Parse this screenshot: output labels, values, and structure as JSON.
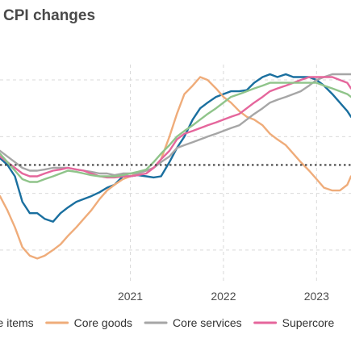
{
  "chart_data": {
    "type": "line",
    "title": "CPI changes",
    "xlabel": "",
    "ylabel": "",
    "x_ticks": [
      {
        "label": "2021",
        "x": 2021.0
      },
      {
        "label": "2022",
        "x": 2022.0
      },
      {
        "label": "2023",
        "x": 2023.0
      }
    ],
    "xlim": [
      2019.6,
      2023.37
    ],
    "ylim": [
      -1.6,
      2.2
    ],
    "gridlines_y": [
      -1.0,
      0.0,
      1.0,
      2.0
    ],
    "reference_line": 0.5,
    "grid": true,
    "legend_position": "bottom",
    "series": [
      {
        "name": "Core items",
        "color": "#1a6f9f",
        "x": [
          2019.6,
          2019.68,
          2019.76,
          2019.84,
          2019.92,
          2020.0,
          2020.08,
          2020.17,
          2020.25,
          2020.33,
          2020.42,
          2020.5,
          2020.58,
          2020.67,
          2020.75,
          2020.83,
          2020.92,
          2021.0,
          2021.08,
          2021.17,
          2021.25,
          2021.33,
          2021.42,
          2021.5,
          2021.58,
          2021.67,
          2021.75,
          2021.83,
          2021.92,
          2022.0,
          2022.08,
          2022.17,
          2022.25,
          2022.33,
          2022.42,
          2022.5,
          2022.58,
          2022.67,
          2022.75,
          2022.83,
          2022.92,
          2023.0,
          2023.08,
          2023.17,
          2023.25,
          2023.33,
          2023.37
        ],
        "y": [
          0.62,
          0.5,
          0.3,
          -0.15,
          -0.35,
          -0.35,
          -0.45,
          -0.5,
          -0.35,
          -0.25,
          -0.15,
          -0.1,
          -0.05,
          0.02,
          0.1,
          0.15,
          0.3,
          0.3,
          0.32,
          0.3,
          0.28,
          0.3,
          0.55,
          0.8,
          1.0,
          1.3,
          1.5,
          1.6,
          1.7,
          1.75,
          1.8,
          1.8,
          1.82,
          1.95,
          2.05,
          2.1,
          2.05,
          2.1,
          2.05,
          2.05,
          2.05,
          2.0,
          1.9,
          1.75,
          1.6,
          1.45,
          1.35
        ]
      },
      {
        "name": "Core goods",
        "color": "#efac7a",
        "x": [
          2019.6,
          2019.68,
          2019.76,
          2019.84,
          2019.92,
          2020.0,
          2020.08,
          2020.17,
          2020.25,
          2020.33,
          2020.42,
          2020.5,
          2020.58,
          2020.67,
          2020.75,
          2020.83,
          2020.92,
          2021.0,
          2021.08,
          2021.17,
          2021.25,
          2021.33,
          2021.42,
          2021.5,
          2021.58,
          2021.67,
          2021.75,
          2021.83,
          2021.92,
          2022.0,
          2022.08,
          2022.17,
          2022.25,
          2022.33,
          2022.42,
          2022.5,
          2022.58,
          2022.67,
          2022.75,
          2022.83,
          2022.92,
          2023.0,
          2023.08,
          2023.17,
          2023.25,
          2023.33,
          2023.37
        ],
        "y": [
          -0.05,
          -0.3,
          -0.6,
          -0.95,
          -1.1,
          -1.15,
          -1.1,
          -1.0,
          -0.9,
          -0.75,
          -0.6,
          -0.45,
          -0.3,
          -0.1,
          0.05,
          0.15,
          0.25,
          0.3,
          0.35,
          0.4,
          0.45,
          0.6,
          1.0,
          1.4,
          1.75,
          1.9,
          2.05,
          2.0,
          1.85,
          1.7,
          1.6,
          1.45,
          1.35,
          1.3,
          1.2,
          1.05,
          0.95,
          0.85,
          0.7,
          0.55,
          0.4,
          0.25,
          0.1,
          0.05,
          0.05,
          0.15,
          0.3
        ]
      },
      {
        "name": "Core services",
        "color": "#a6a6a6",
        "x": [
          2019.6,
          2019.68,
          2019.76,
          2019.84,
          2019.92,
          2020.0,
          2020.08,
          2020.17,
          2020.25,
          2020.33,
          2020.42,
          2020.5,
          2020.58,
          2020.67,
          2020.75,
          2020.83,
          2020.92,
          2021.0,
          2021.08,
          2021.17,
          2021.25,
          2021.33,
          2021.42,
          2021.5,
          2021.58,
          2021.67,
          2021.75,
          2021.83,
          2021.92,
          2022.0,
          2022.08,
          2022.17,
          2022.25,
          2022.33,
          2022.42,
          2022.5,
          2022.58,
          2022.67,
          2022.75,
          2022.83,
          2022.92,
          2023.0,
          2023.08,
          2023.17,
          2023.25,
          2023.33,
          2023.37
        ],
        "y": [
          0.75,
          0.65,
          0.55,
          0.45,
          0.4,
          0.4,
          0.42,
          0.45,
          0.45,
          0.45,
          0.42,
          0.4,
          0.38,
          0.35,
          0.35,
          0.32,
          0.35,
          0.35,
          0.35,
          0.4,
          0.45,
          0.55,
          0.65,
          0.8,
          0.85,
          0.9,
          0.95,
          1.0,
          1.05,
          1.1,
          1.15,
          1.2,
          1.3,
          1.4,
          1.5,
          1.6,
          1.65,
          1.7,
          1.75,
          1.8,
          1.9,
          2.0,
          2.05,
          2.1,
          2.1,
          2.1,
          2.1
        ]
      },
      {
        "name": "Supercore",
        "color": "#e5669c",
        "x": [
          2019.6,
          2019.68,
          2019.76,
          2019.84,
          2019.92,
          2020.0,
          2020.08,
          2020.17,
          2020.25,
          2020.33,
          2020.42,
          2020.5,
          2020.58,
          2020.67,
          2020.75,
          2020.83,
          2020.92,
          2021.0,
          2021.08,
          2021.17,
          2021.25,
          2021.33,
          2021.42,
          2021.5,
          2021.58,
          2021.67,
          2021.75,
          2021.83,
          2021.92,
          2022.0,
          2022.08,
          2022.17,
          2022.25,
          2022.33,
          2022.42,
          2022.5,
          2022.58,
          2022.67,
          2022.75,
          2022.83,
          2022.92,
          2023.0,
          2023.08,
          2023.17,
          2023.25,
          2023.33,
          2023.37
        ],
        "y": [
          0.65,
          0.55,
          0.45,
          0.35,
          0.3,
          0.3,
          0.35,
          0.4,
          0.42,
          0.45,
          0.42,
          0.4,
          0.35,
          0.3,
          0.28,
          0.28,
          0.3,
          0.3,
          0.32,
          0.35,
          0.45,
          0.6,
          0.75,
          0.95,
          1.05,
          1.1,
          1.15,
          1.2,
          1.25,
          1.3,
          1.35,
          1.4,
          1.5,
          1.6,
          1.7,
          1.8,
          1.85,
          1.9,
          1.95,
          2.0,
          2.05,
          2.05,
          2.05,
          2.05,
          2.0,
          1.95,
          1.85
        ]
      },
      {
        "name": "",
        "color": "#8fc48a",
        "x": [
          2019.6,
          2019.68,
          2019.76,
          2019.84,
          2019.92,
          2020.0,
          2020.08,
          2020.17,
          2020.25,
          2020.33,
          2020.42,
          2020.5,
          2020.58,
          2020.67,
          2020.75,
          2020.83,
          2020.92,
          2021.0,
          2021.08,
          2021.17,
          2021.25,
          2021.33,
          2021.42,
          2021.5,
          2021.58,
          2021.67,
          2021.75,
          2021.83,
          2021.92,
          2022.0,
          2022.08,
          2022.17,
          2022.25,
          2022.33,
          2022.42,
          2022.5,
          2022.58,
          2022.67,
          2022.75,
          2022.83,
          2022.92,
          2023.0,
          2023.08,
          2023.17,
          2023.25,
          2023.33,
          2023.37
        ],
        "y": [
          0.7,
          0.55,
          0.4,
          0.25,
          0.2,
          0.2,
          0.25,
          0.3,
          0.35,
          0.4,
          0.38,
          0.35,
          0.32,
          0.3,
          0.3,
          0.3,
          0.32,
          0.35,
          0.38,
          0.42,
          0.55,
          0.7,
          0.85,
          1.0,
          1.1,
          1.2,
          1.3,
          1.4,
          1.5,
          1.6,
          1.7,
          1.75,
          1.8,
          1.85,
          1.9,
          1.95,
          1.95,
          1.95,
          1.95,
          1.95,
          1.95,
          1.95,
          1.9,
          1.85,
          1.8,
          1.75,
          1.7
        ]
      }
    ]
  }
}
